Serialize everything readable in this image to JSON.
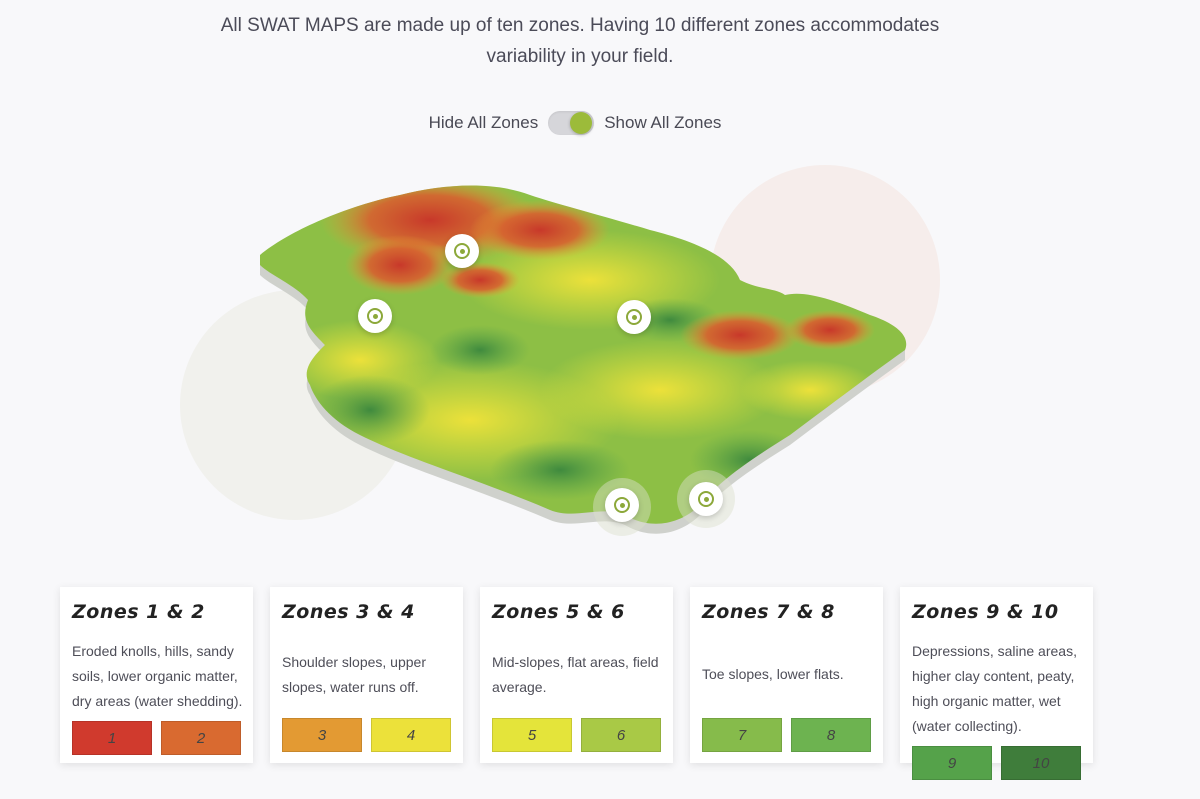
{
  "intro_text": "All SWAT MAPS are made up of ten zones. Having 10 different zones accommodates variability in your field.",
  "toggle": {
    "hide_label": "Hide All Zones",
    "show_label": "Show All Zones",
    "state": "Show All Zones"
  },
  "colors": {
    "accent": "#9cbb3a",
    "pin": "#8ca83a"
  },
  "zones": [
    {
      "title": "Zones 1 & 2",
      "description": "Eroded knolls, hills, sandy soils, lower organic matter, dry areas (water shedding).",
      "swatches": [
        {
          "label": "1",
          "color": "#d03a2d"
        },
        {
          "label": "2",
          "color": "#d96a30"
        }
      ]
    },
    {
      "title": "Zones 3 & 4",
      "description": "Shoulder slopes, upper slopes, water runs off.",
      "swatches": [
        {
          "label": "3",
          "color": "#e39a33"
        },
        {
          "label": "4",
          "color": "#ece13a"
        }
      ]
    },
    {
      "title": "Zones 5 & 6",
      "description": "Mid-slopes, flat areas, field average.",
      "swatches": [
        {
          "label": "5",
          "color": "#e4e43a"
        },
        {
          "label": "6",
          "color": "#a9c946"
        }
      ]
    },
    {
      "title": "Zones 7 & 8",
      "description": "Toe slopes, lower flats.",
      "swatches": [
        {
          "label": "7",
          "color": "#86bb4b"
        },
        {
          "label": "8",
          "color": "#6db350"
        }
      ]
    },
    {
      "title": "Zones 9 & 10",
      "description": "Depressions, saline areas, higher clay content, peaty, high organic matter, wet (water collecting).",
      "swatches": [
        {
          "label": "9",
          "color": "#55a24a"
        },
        {
          "label": "10",
          "color": "#3f7d3b"
        }
      ]
    }
  ]
}
